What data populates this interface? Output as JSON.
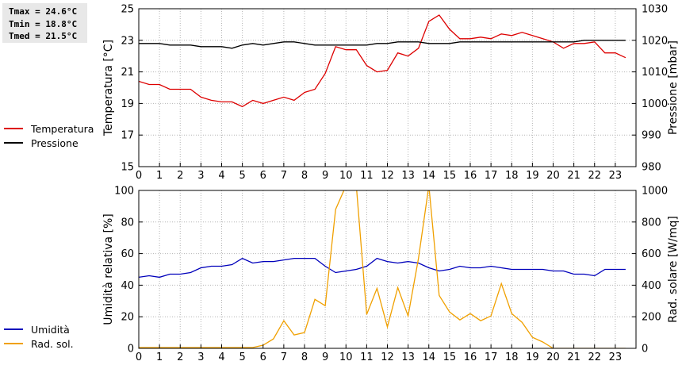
{
  "stats": {
    "tmax": "Tmax = 24.6°C",
    "tmin": "Tmin = 18.8°C",
    "tmed": "Tmed = 21.5°C"
  },
  "chart_data": [
    {
      "type": "line",
      "x": [
        0,
        0.5,
        1,
        1.5,
        2,
        2.5,
        3,
        3.5,
        4,
        4.5,
        5,
        5.5,
        6,
        6.5,
        7,
        7.5,
        8,
        8.5,
        9,
        9.5,
        10,
        10.5,
        11,
        11.5,
        12,
        12.5,
        13,
        13.5,
        14,
        14.5,
        15,
        15.5,
        16,
        16.5,
        17,
        17.5,
        18,
        18.5,
        19,
        19.5,
        20,
        20.5,
        21,
        21.5,
        22,
        22.5,
        23,
        23.5
      ],
      "xlim": [
        0,
        24
      ],
      "xticks": [
        "0",
        "1",
        "2",
        "3",
        "4",
        "5",
        "6",
        "7",
        "8",
        "9",
        "10",
        "11",
        "12",
        "13",
        "14",
        "15",
        "16",
        "17",
        "18",
        "19",
        "20",
        "21",
        "22",
        "23"
      ],
      "series": [
        {
          "name": "Temperatura",
          "color": "#dd0000",
          "axis": "left",
          "values": [
            20.4,
            20.2,
            20.2,
            19.9,
            19.9,
            19.9,
            19.4,
            19.2,
            19.1,
            19.1,
            18.8,
            19.2,
            19.0,
            19.2,
            19.4,
            19.2,
            19.7,
            19.9,
            20.9,
            22.6,
            22.4,
            22.4,
            21.4,
            21.0,
            21.1,
            22.2,
            22.0,
            22.5,
            24.2,
            24.6,
            23.7,
            23.1,
            23.1,
            23.2,
            23.1,
            23.4,
            23.3,
            23.5,
            23.3,
            23.1,
            22.9,
            22.5,
            22.8,
            22.8,
            22.9,
            22.2,
            22.2,
            21.9
          ]
        },
        {
          "name": "Pressione",
          "color": "#000000",
          "axis": "right",
          "values": [
            1019,
            1019,
            1019,
            1018.5,
            1018.5,
            1018.5,
            1018,
            1018,
            1018,
            1017.5,
            1018.5,
            1019,
            1018.5,
            1019,
            1019.5,
            1019.5,
            1019,
            1018.5,
            1018.5,
            1018.5,
            1018.5,
            1018.5,
            1018.5,
            1019,
            1019,
            1019.5,
            1019.5,
            1019.5,
            1019,
            1019,
            1019,
            1019.5,
            1019.5,
            1019.5,
            1019.5,
            1019.5,
            1019.5,
            1019.5,
            1019.5,
            1019.5,
            1019.5,
            1019.5,
            1019.5,
            1020,
            1020,
            1020,
            1020,
            1020
          ]
        }
      ],
      "ylabel": "Temperatura [°C]",
      "ylim": [
        15,
        25
      ],
      "yticks": [
        15,
        17,
        19,
        21,
        23,
        25
      ],
      "ylabel2": "Pressione [mbar]",
      "ylim2": [
        980,
        1030
      ],
      "yticks2": [
        980,
        990,
        1000,
        1010,
        1020,
        1030
      ],
      "grid": true
    },
    {
      "type": "line",
      "x": [
        0,
        0.5,
        1,
        1.5,
        2,
        2.5,
        3,
        3.5,
        4,
        4.5,
        5,
        5.5,
        6,
        6.5,
        7,
        7.5,
        8,
        8.5,
        9,
        9.5,
        10,
        10.5,
        11,
        11.5,
        12,
        12.5,
        13,
        13.5,
        14,
        14.5,
        15,
        15.5,
        16,
        16.5,
        17,
        17.5,
        18,
        18.5,
        19,
        19.5,
        20,
        20.5,
        21,
        21.5,
        22,
        22.5,
        23,
        23.5
      ],
      "xlim": [
        0,
        24
      ],
      "xticks": [
        "0",
        "1",
        "2",
        "3",
        "4",
        "5",
        "6",
        "7",
        "8",
        "9",
        "10",
        "11",
        "12",
        "13",
        "14",
        "15",
        "16",
        "17",
        "18",
        "19",
        "20",
        "21",
        "22",
        "23"
      ],
      "series": [
        {
          "name": "Umidità",
          "color": "#0000bb",
          "axis": "left",
          "values": [
            45,
            46,
            45,
            47,
            47,
            48,
            51,
            52,
            52,
            53,
            57,
            54,
            55,
            55,
            56,
            57,
            57,
            57,
            52,
            48,
            49,
            50,
            52,
            57,
            55,
            54,
            55,
            54,
            51,
            49,
            50,
            52,
            51,
            51,
            52,
            51,
            50,
            50,
            50,
            50,
            49,
            49,
            47,
            47,
            46,
            50,
            50,
            50
          ]
        },
        {
          "name": "Rad. sol.",
          "color": "#f0a000",
          "axis": "right",
          "values": [
            5,
            5,
            5,
            5,
            5,
            5,
            5,
            5,
            5,
            5,
            5,
            5,
            20,
            60,
            175,
            85,
            100,
            310,
            270,
            880,
            1030,
            1030,
            215,
            380,
            135,
            385,
            205,
            570,
            1030,
            335,
            230,
            180,
            220,
            175,
            205,
            410,
            220,
            165,
            70,
            40,
            0,
            0,
            0,
            0,
            0,
            0,
            0,
            0
          ]
        }
      ],
      "ylabel": "Umidità relativa [%]",
      "ylim": [
        0,
        100
      ],
      "yticks": [
        0,
        20,
        40,
        60,
        80,
        100
      ],
      "ylabel2": "Rad. solare [W/mq]",
      "ylim2": [
        0,
        1000
      ],
      "yticks2": [
        0,
        200,
        400,
        600,
        800,
        1000
      ],
      "grid": true
    }
  ]
}
